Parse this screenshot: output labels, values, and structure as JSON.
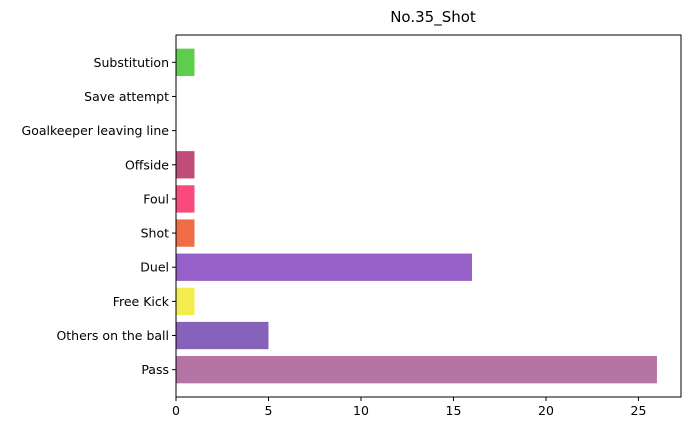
{
  "chart_data": {
    "type": "bar",
    "orientation": "horizontal",
    "title": "No.35_Shot",
    "xlabel": "",
    "ylabel": "",
    "categories": [
      "Pass",
      "Others on the ball",
      "Free Kick",
      "Duel",
      "Shot",
      "Foul",
      "Offside",
      "Goalkeeper leaving line",
      "Save attempt",
      "Substitution"
    ],
    "values": [
      26,
      5,
      1,
      16,
      1,
      1,
      1,
      0,
      0,
      1
    ],
    "colors": [
      "#b574a3",
      "#8662bb",
      "#f3ec4f",
      "#9560c8",
      "#ef6c46",
      "#fa4a7b",
      "#c14c79",
      "#c96a8f",
      "#5a97de",
      "#5ecd4b"
    ],
    "xlim": [
      0,
      27.3
    ],
    "xticks": [
      0,
      5,
      10,
      15,
      20,
      25
    ],
    "grid": false,
    "legend": "none"
  }
}
